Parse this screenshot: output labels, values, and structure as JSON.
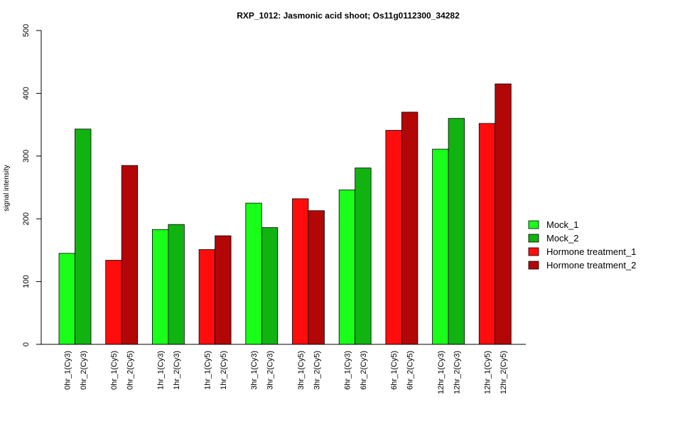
{
  "chart_data": {
    "type": "bar",
    "title": "RXP_1012: Jasmonic acid shoot; Os11g0112300_34282",
    "xlabel": "",
    "ylabel": "signal intensity",
    "ylim": [
      0,
      500
    ],
    "yticks": [
      0,
      100,
      200,
      300,
      400,
      500
    ],
    "grid": false,
    "legend_position": "right",
    "series_colors": {
      "Mock_1": "#1aff1a",
      "Mock_2": "#11b311",
      "Hormone treatment_1": "#ff0d0d",
      "Hormone treatment_2": "#b30707"
    },
    "legend": [
      {
        "name": "Mock_1",
        "color": "#1aff1a"
      },
      {
        "name": "Mock_2",
        "color": "#11b311"
      },
      {
        "name": "Hormone treatment_1",
        "color": "#ff0d0d"
      },
      {
        "name": "Hormone treatment_2",
        "color": "#b30707"
      }
    ],
    "bars": [
      {
        "label": "0hr_1(Cy3)",
        "value": 145,
        "series": "Mock_1"
      },
      {
        "label": "0hr_2(Cy3)",
        "value": 343,
        "series": "Mock_2"
      },
      {
        "label": "0hr_1(Cy5)",
        "value": 134,
        "series": "Hormone treatment_1"
      },
      {
        "label": "0hr_2(Cy5)",
        "value": 285,
        "series": "Hormone treatment_2"
      },
      {
        "label": "1hr_1(Cy3)",
        "value": 183,
        "series": "Mock_1"
      },
      {
        "label": "1hr_2(Cy3)",
        "value": 191,
        "series": "Mock_2"
      },
      {
        "label": "1hr_1(Cy5)",
        "value": 151,
        "series": "Hormone treatment_1"
      },
      {
        "label": "1hr_2(Cy5)",
        "value": 173,
        "series": "Hormone treatment_2"
      },
      {
        "label": "3hr_1(Cy3)",
        "value": 225,
        "series": "Mock_1"
      },
      {
        "label": "3hr_2(Cy3)",
        "value": 186,
        "series": "Mock_2"
      },
      {
        "label": "3hr_1(Cy5)",
        "value": 232,
        "series": "Hormone treatment_1"
      },
      {
        "label": "3hr_2(Cy5)",
        "value": 213,
        "series": "Hormone treatment_2"
      },
      {
        "label": "6hr_1(Cy3)",
        "value": 246,
        "series": "Mock_1"
      },
      {
        "label": "6hr_2(Cy3)",
        "value": 281,
        "series": "Mock_2"
      },
      {
        "label": "6hr_1(Cy5)",
        "value": 341,
        "series": "Hormone treatment_1"
      },
      {
        "label": "6hr_2(Cy5)",
        "value": 370,
        "series": "Hormone treatment_2"
      },
      {
        "label": "12hr_1(Cy3)",
        "value": 311,
        "series": "Mock_1"
      },
      {
        "label": "12hr_2(Cy3)",
        "value": 360,
        "series": "Mock_2"
      },
      {
        "label": "12hr_1(Cy5)",
        "value": 352,
        "series": "Hormone treatment_1"
      },
      {
        "label": "12hr_2(Cy5)",
        "value": 415,
        "series": "Hormone treatment_2"
      }
    ]
  }
}
